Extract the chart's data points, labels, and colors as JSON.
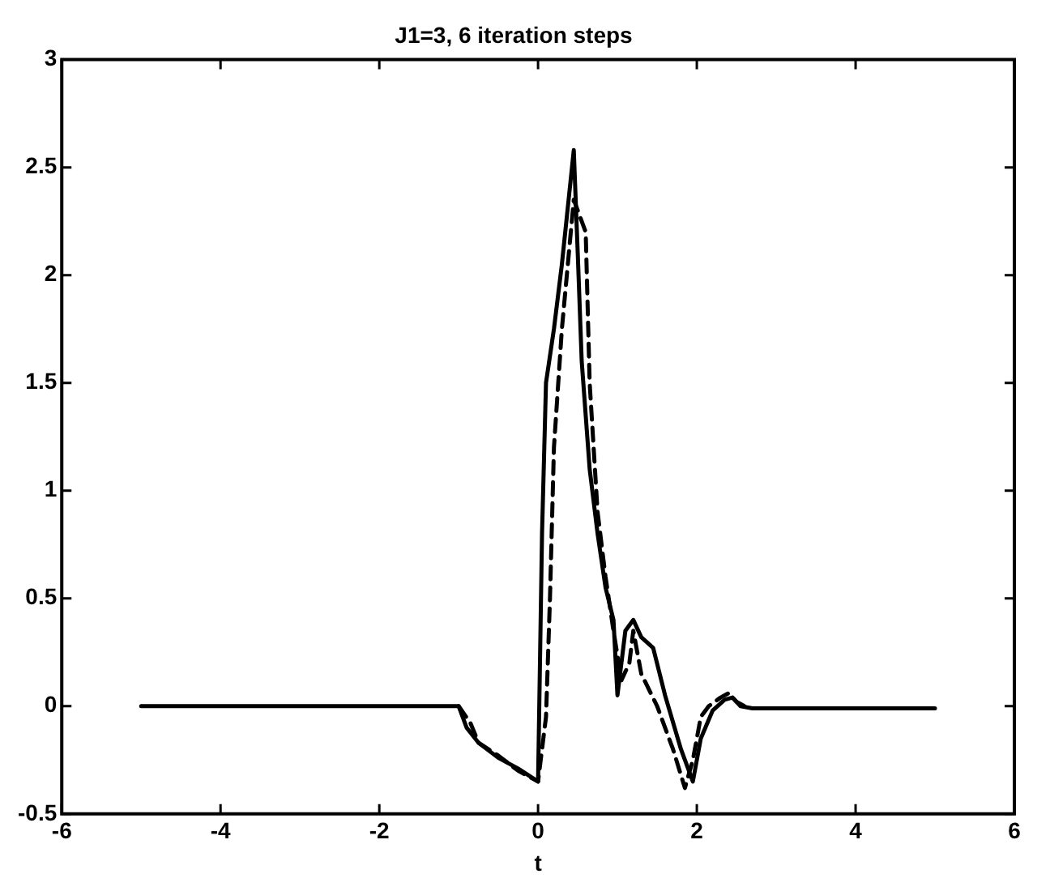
{
  "chart_data": {
    "type": "line",
    "title": "J1=3, 6 iteration steps",
    "xlabel": "t",
    "xlim": [
      -6,
      6
    ],
    "xticks": [
      -6,
      -4,
      -2,
      0,
      2,
      4,
      6
    ],
    "ylim": [
      -0.5,
      3
    ],
    "yticks": [
      -0.5,
      0,
      0.5,
      1,
      1.5,
      2,
      2.5,
      3
    ],
    "grid": false,
    "legend": false,
    "marker": "none",
    "series": [
      {
        "color": "#000000",
        "line_style": "solid",
        "x": [
          -5,
          -1,
          -0.9,
          -0.75,
          -0.5,
          -0.25,
          0,
          0.05,
          0.1,
          0.2,
          0.3,
          0.45,
          0.5,
          0.55,
          0.65,
          0.75,
          0.85,
          0.95,
          1.0,
          1.1,
          1.2,
          1.3,
          1.45,
          1.6,
          1.8,
          1.95,
          2.05,
          2.2,
          2.35,
          2.45,
          2.55,
          2.7,
          5
        ],
        "values": [
          0,
          0,
          -0.1,
          -0.17,
          -0.24,
          -0.29,
          -0.35,
          0.8,
          1.5,
          1.75,
          2.05,
          2.58,
          2.1,
          1.6,
          1.1,
          0.8,
          0.55,
          0.4,
          0.05,
          0.35,
          0.4,
          0.32,
          0.27,
          0.05,
          -0.2,
          -0.35,
          -0.15,
          -0.02,
          0.03,
          0.04,
          0,
          -0.01,
          -0.01
        ]
      },
      {
        "color": "#000000",
        "line_style": "dashed",
        "x": [
          -1,
          -0.85,
          -0.75,
          -0.5,
          -0.25,
          0,
          0.1,
          0.15,
          0.2,
          0.3,
          0.45,
          0.6,
          0.65,
          0.75,
          0.85,
          0.95,
          1.05,
          1.15,
          1.2,
          1.3,
          1.5,
          1.7,
          1.85,
          1.95,
          2.05,
          2.15,
          2.3,
          2.4,
          2.5,
          2.6
        ],
        "values": [
          0,
          -0.08,
          -0.17,
          -0.23,
          -0.3,
          -0.35,
          -0.05,
          0.5,
          1.2,
          1.75,
          2.35,
          2.2,
          1.5,
          0.9,
          0.6,
          0.35,
          0.12,
          0.2,
          0.35,
          0.15,
          0,
          -0.2,
          -0.38,
          -0.25,
          -0.05,
          0,
          0.04,
          0.06,
          0.02,
          0
        ]
      }
    ]
  }
}
